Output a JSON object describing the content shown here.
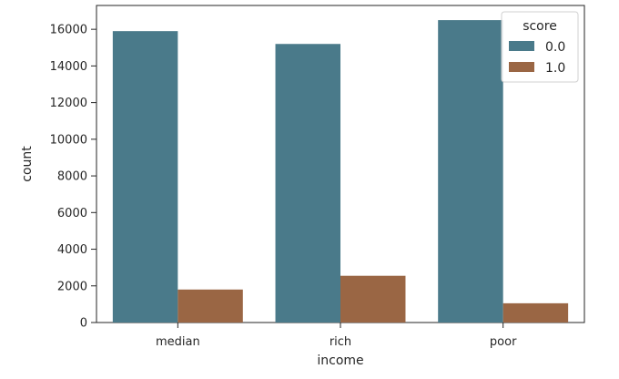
{
  "chart_data": {
    "type": "bar",
    "categories": [
      "median",
      "rich",
      "poor"
    ],
    "series": [
      {
        "name": "0.0",
        "values": [
          15900,
          15200,
          16500
        ]
      },
      {
        "name": "1.0",
        "values": [
          1800,
          2550,
          1050
        ]
      }
    ],
    "xlabel": "income",
    "ylabel": "count",
    "ylim": [
      0,
      17300
    ],
    "yticks": [
      0,
      2000,
      4000,
      6000,
      8000,
      10000,
      12000,
      14000,
      16000
    ],
    "grid": false,
    "legend": {
      "title": "score",
      "placement": "top-right"
    },
    "colors": {
      "0.0": "#4a7a8a",
      "1.0": "#9a6644"
    }
  }
}
